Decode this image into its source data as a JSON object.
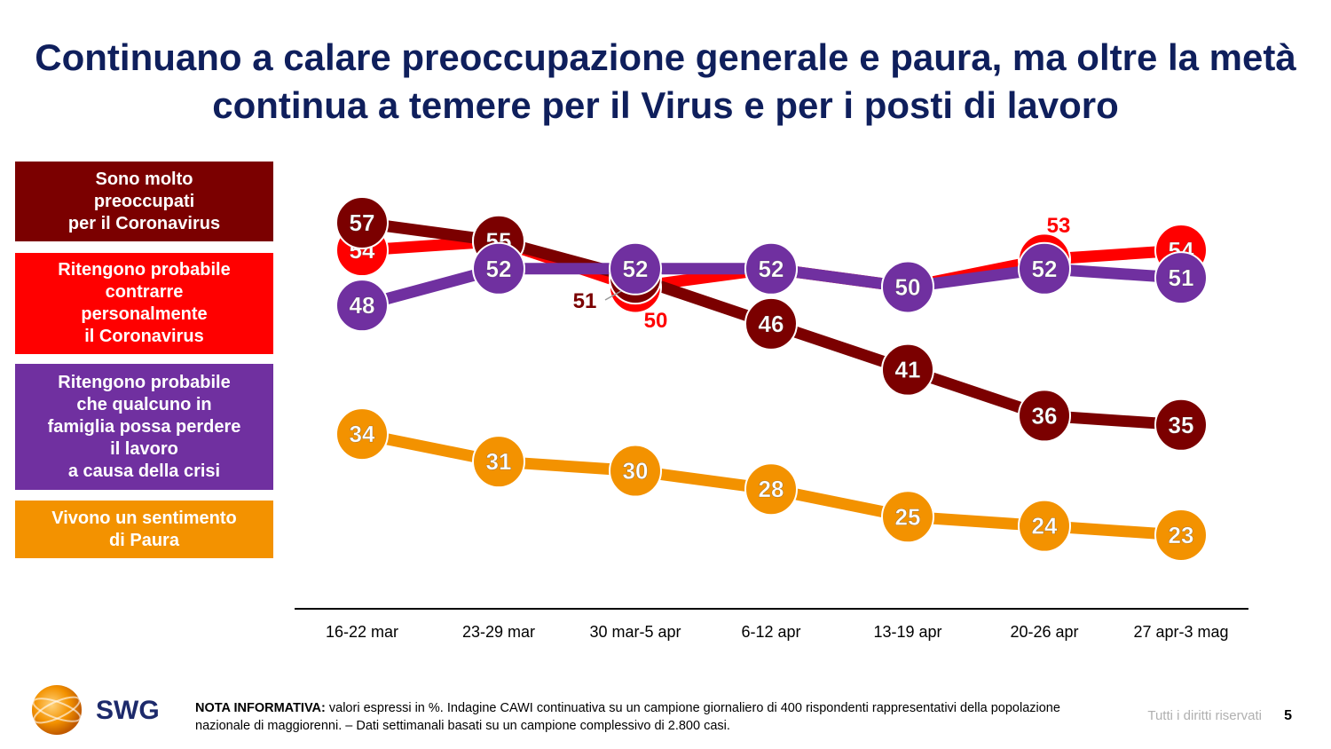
{
  "title": "Continuano a calare preoccupazione generale e paura, ma oltre la metà continua a temere per il Virus e per i posti di lavoro",
  "legend": [
    {
      "label": "Sono molto\npreoccupati\nper il Coronavirus",
      "color": "#7b0000"
    },
    {
      "label": "Ritengono probabile\ncontrarre\npersonalmente\nil Coronavirus",
      "color": "#ff0000"
    },
    {
      "label": "Ritengono probabile\nche qualcuno in\nfamiglia possa perdere\nil lavoro\na causa della crisi",
      "color": "#7030a0"
    },
    {
      "label": "Vivono un sentimento\ndi Paura",
      "color": "#f39200"
    }
  ],
  "chart_data": {
    "type": "line",
    "categories": [
      "16-22 mar",
      "23-29 mar",
      "30 mar-5 apr",
      "6-12 apr",
      "13-19 apr",
      "20-26 apr",
      "27 apr-3 mag"
    ],
    "series": [
      {
        "name": "Ritengono probabile contrarre personalmente il Coronavirus",
        "color": "#ff0000",
        "values": [
          54,
          55,
          50,
          52,
          50,
          53,
          54
        ]
      },
      {
        "name": "Sono molto preoccupati per il Coronavirus",
        "color": "#7b0000",
        "values": [
          57,
          55,
          51,
          46,
          41,
          36,
          35
        ]
      },
      {
        "name": "Ritengono probabile che qualcuno in famiglia possa perdere il lavoro a causa della crisi",
        "color": "#7030a0",
        "values": [
          48,
          52,
          52,
          52,
          50,
          52,
          51
        ]
      },
      {
        "name": "Vivono un sentimento di Paura",
        "color": "#f39200",
        "values": [
          34,
          31,
          30,
          28,
          25,
          24,
          23
        ]
      }
    ],
    "ylim": [
      23,
      57
    ]
  },
  "logo": {
    "text": "SWG"
  },
  "note": {
    "label": "NOTA INFORMATIVA:",
    "text": " valori espressi in %. Indagine CAWI continuativa su un campione giornaliero di 400 rispondenti rappresentativi della popolazione nazionale di maggiorenni. – Dati settimanali basati su un campione complessivo di 2.800 casi."
  },
  "footer": {
    "rights": "Tutti i diritti riservati",
    "page": "5"
  }
}
